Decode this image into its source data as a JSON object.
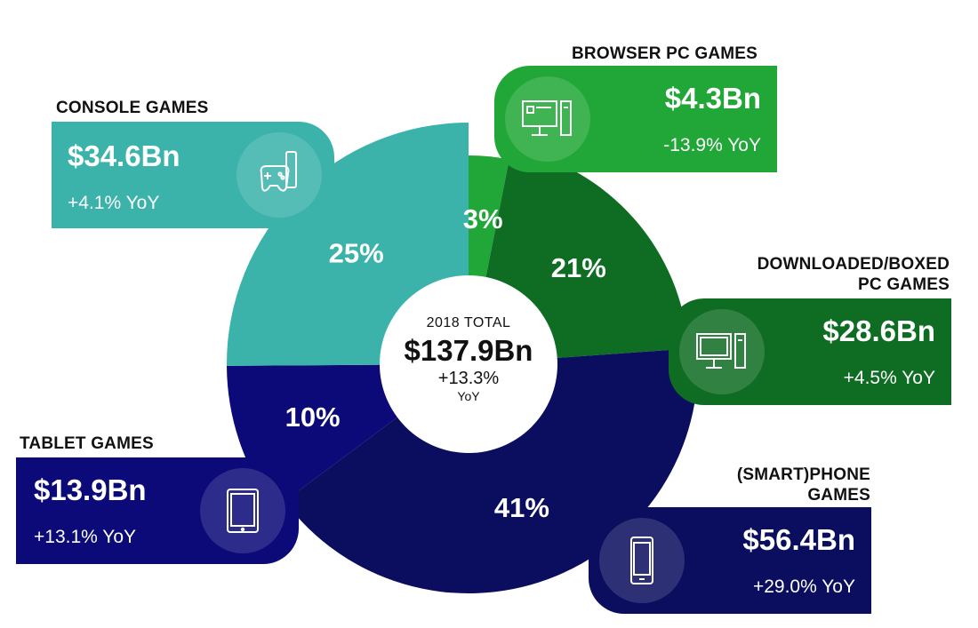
{
  "colors": {
    "console": "#3bb3ab",
    "browser_pc": "#21a737",
    "downloaded_pc": "#0f6d23",
    "smartphone": "#0b0e5e",
    "tablet": "#0b0a78"
  },
  "center": {
    "label": "2018 TOTAL",
    "value": "$137.9Bn",
    "growth": "+13.3%",
    "growth_unit": "YoY"
  },
  "segments": [
    {
      "key": "browser_pc",
      "heading": "BROWSER PC GAMES",
      "amount": "$4.3Bn",
      "yoy": "-13.9% YoY",
      "pct_label": "3%",
      "icon": "desktop-computer-icon"
    },
    {
      "key": "downloaded_pc",
      "heading_line1": "DOWNLOADED/BOXED",
      "heading_line2": "PC GAMES",
      "amount": "$28.6Bn",
      "yoy": "+4.5% YoY",
      "pct_label": "21%",
      "icon": "desktop-computer-icon"
    },
    {
      "key": "smartphone",
      "heading_line1": "(SMART)PHONE",
      "heading_line2": "GAMES",
      "amount": "$56.4Bn",
      "yoy": "+29.0% YoY",
      "pct_label": "41%",
      "icon": "smartphone-icon"
    },
    {
      "key": "tablet",
      "heading": "TABLET GAMES",
      "amount": "$13.9Bn",
      "yoy": "+13.1% YoY",
      "pct_label": "10%",
      "icon": "tablet-icon"
    },
    {
      "key": "console",
      "heading": "CONSOLE GAMES",
      "amount": "$34.6Bn",
      "yoy": "+4.1% YoY",
      "pct_label": "25%",
      "icon": "game-controller-icon"
    }
  ],
  "chart_data": {
    "type": "pie",
    "title": "",
    "total": 137.9,
    "unit": "$Bn",
    "categories": [
      "Browser PC Games",
      "Downloaded/Boxed PC Games",
      "(Smart)phone Games",
      "Tablet Games",
      "Console Games"
    ],
    "values": [
      4.3,
      28.6,
      56.4,
      13.9,
      34.6
    ],
    "percentages": [
      3,
      21,
      41,
      10,
      25
    ],
    "yoy_growth_pct": [
      -13.9,
      4.5,
      29.0,
      13.1,
      4.1
    ]
  }
}
